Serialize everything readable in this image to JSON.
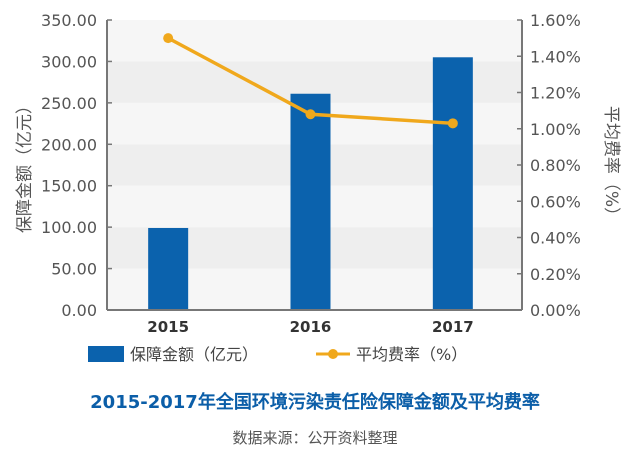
{
  "chart_data": {
    "type": "bar+line",
    "categories": [
      "2015",
      "2016",
      "2017"
    ],
    "series": [
      {
        "name": "保障金额（亿元）",
        "type": "bar",
        "axis": "left",
        "values": [
          99,
          261,
          305
        ],
        "color": "#0b62ad"
      },
      {
        "name": "平均费率（%）",
        "type": "line",
        "axis": "right",
        "values": [
          1.5,
          1.08,
          1.03
        ],
        "color": "#f0a81c"
      }
    ],
    "left_axis": {
      "label": "保障金额（亿元）",
      "ylim": [
        0,
        350
      ],
      "ticks": [
        "0.00",
        "50.00",
        "100.00",
        "150.00",
        "200.00",
        "250.00",
        "300.00",
        "350.00"
      ]
    },
    "right_axis": {
      "label": "平均费率（%）",
      "ylim": [
        0,
        1.6
      ],
      "ticks": [
        "0.00%",
        "0.20%",
        "0.40%",
        "0.60%",
        "0.80%",
        "1.00%",
        "1.20%",
        "1.40%",
        "1.60%"
      ]
    },
    "legend": "bottom",
    "title": "2015-2017年全国环境污染责任险保障金额及平均费率",
    "source": "数据来源：公开资料整理"
  }
}
